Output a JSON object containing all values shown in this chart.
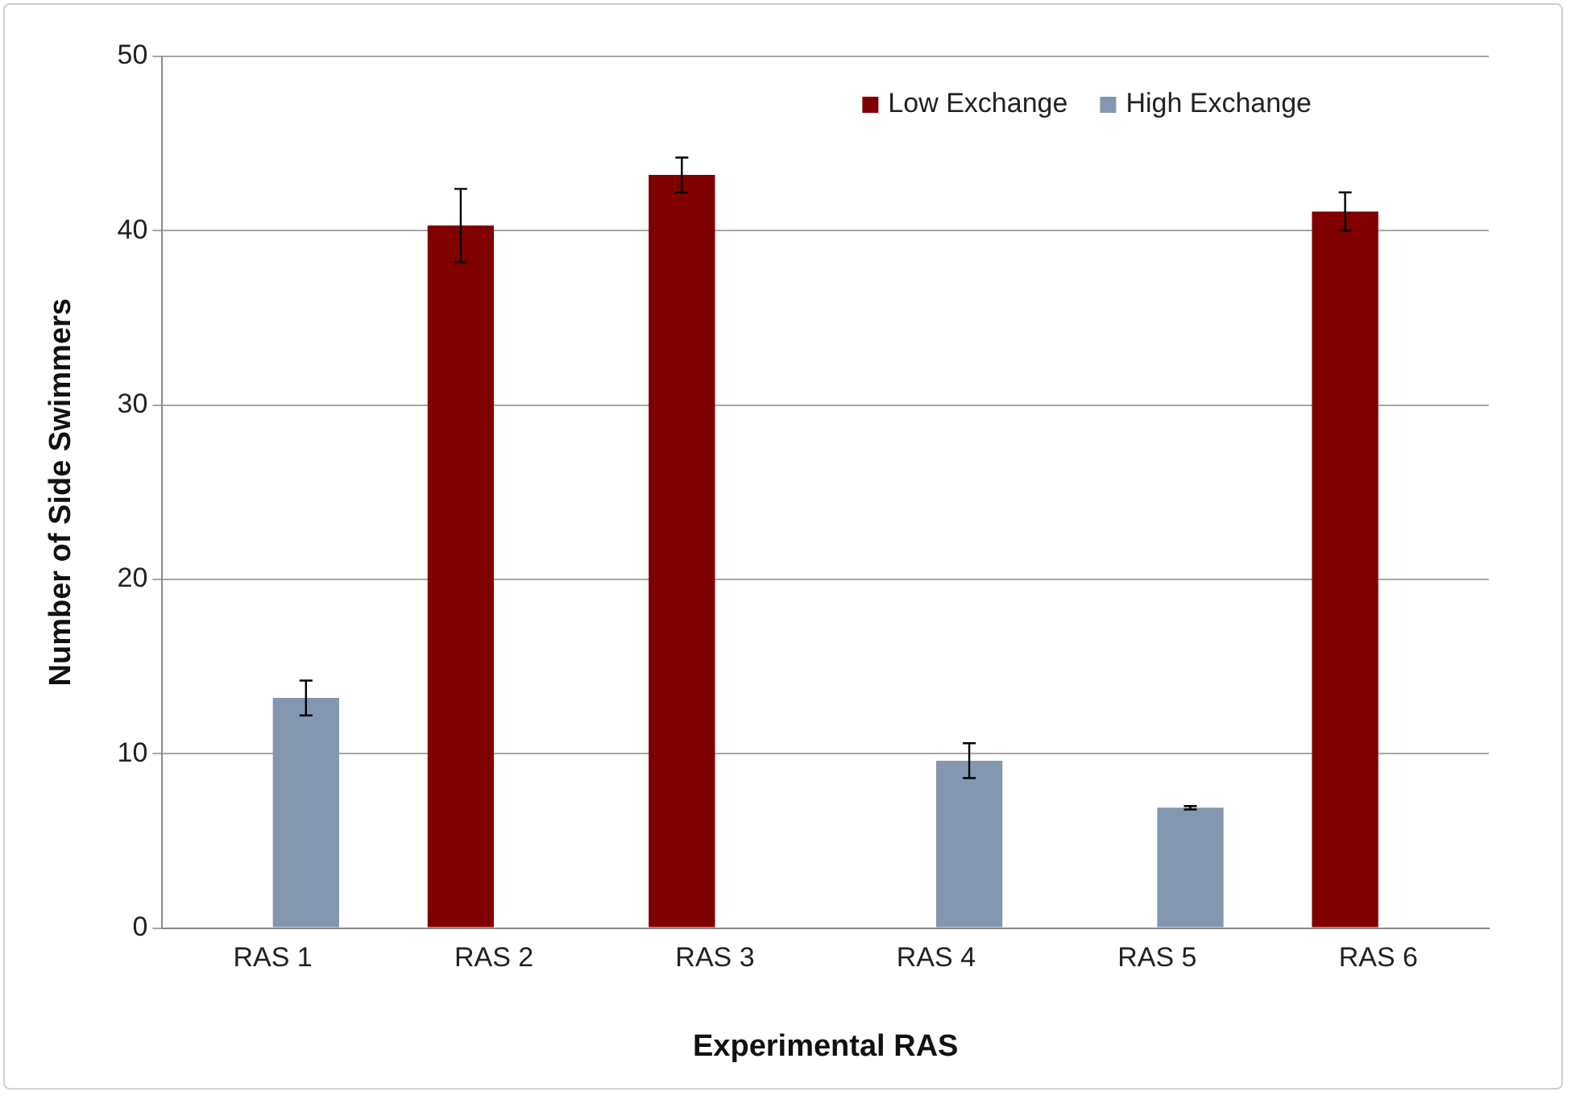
{
  "chart_data": {
    "type": "bar",
    "xlabel": "Experimental RAS",
    "ylabel": "Number of Side Swimmers",
    "categories": [
      "RAS 1",
      "RAS 2",
      "RAS 3",
      "RAS 4",
      "RAS 5",
      "RAS 6"
    ],
    "series": [
      {
        "name": "Low Exchange",
        "color": "#800000",
        "values": [
          null,
          40.3,
          43.2,
          null,
          null,
          41.1
        ],
        "errors": [
          null,
          2.1,
          1.0,
          null,
          null,
          1.1
        ]
      },
      {
        "name": "High Exchange",
        "color": "#8497b0",
        "values": [
          13.2,
          null,
          null,
          9.6,
          6.9,
          null
        ],
        "errors": [
          1.0,
          null,
          null,
          1.0,
          0.1,
          null
        ]
      }
    ],
    "ylim": [
      0,
      50
    ],
    "yticks": [
      0,
      10,
      20,
      30,
      40,
      50
    ],
    "grid": "y",
    "legend": "top right"
  }
}
